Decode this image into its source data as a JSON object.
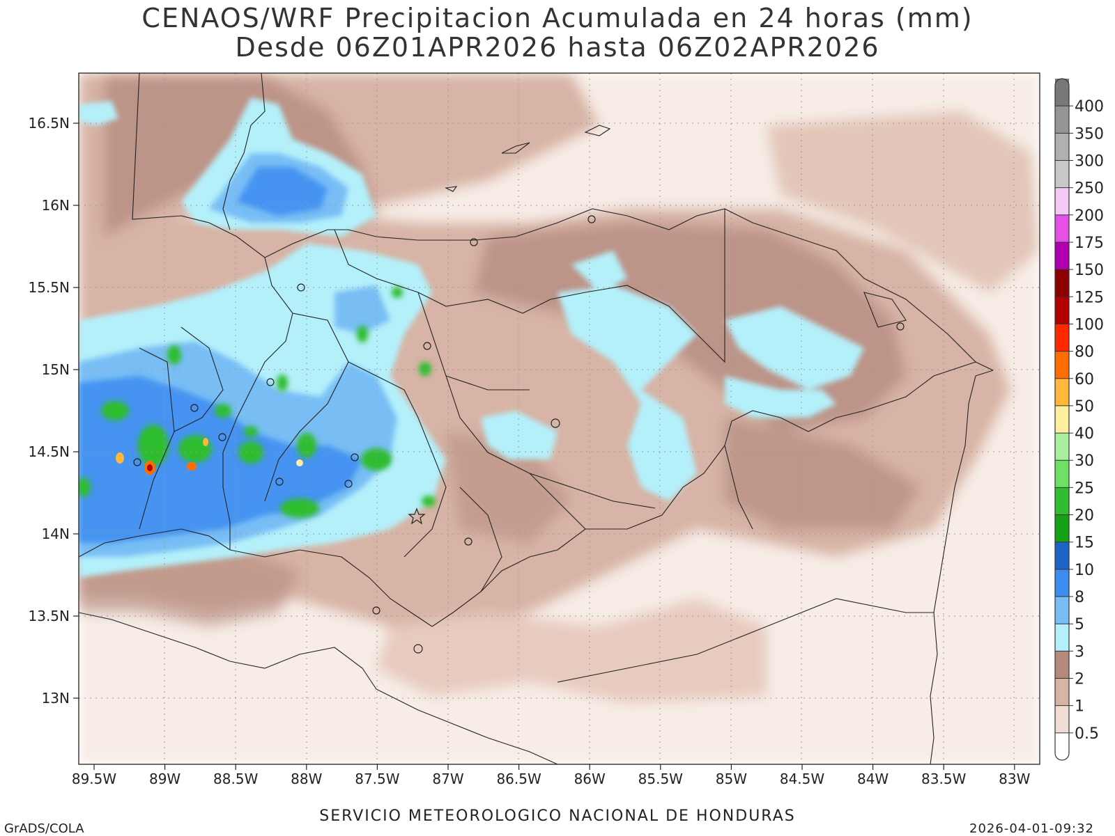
{
  "title_line1": "CENAOS/WRF Precipitacion Acumulada en 24 horas (mm)",
  "title_line2": "Desde 06Z01APR2026 hasta 06Z02APR2026",
  "footer": {
    "left": "GrADS/COLA",
    "center": "SERVICIO METEOROLOGICO NACIONAL DE HONDURAS",
    "right": "2026-04-01-09:32"
  },
  "lon_labels": [
    "89.5W",
    "89W",
    "88.5W",
    "88W",
    "87.5W",
    "87W",
    "86.5W",
    "86W",
    "85.5W",
    "85W",
    "84.5W",
    "84W",
    "83.5W",
    "83W"
  ],
  "lat_labels": [
    "16.5N",
    "16N",
    "15.5N",
    "15N",
    "14.5N",
    "14N",
    "13.5N",
    "13N"
  ],
  "colorbar": {
    "labels": [
      "400",
      "350",
      "300",
      "250",
      "200",
      "175",
      "150",
      "125",
      "100",
      "80",
      "60",
      "50",
      "40",
      "30",
      "25",
      "20",
      "15",
      "10",
      "8",
      "5",
      "3",
      "2",
      "1",
      "0.5"
    ],
    "colors": [
      "#787878",
      "#959595",
      "#b0b0b0",
      "#c8c8c8",
      "#f6c8f6",
      "#e650e6",
      "#b000b0",
      "#8c0000",
      "#b40000",
      "#ff2800",
      "#ff6e00",
      "#ffb83c",
      "#fff0a0",
      "#a8f0a0",
      "#6ee066",
      "#2fbd2f",
      "#15a015",
      "#1e64c8",
      "#3c8cf0",
      "#78bef5",
      "#b4f0fa",
      "#b48a7d",
      "#d7b4a5",
      "#f0dcd2",
      "#ffffff"
    ]
  },
  "markers": {
    "star": "capital-star",
    "circle": "city-circle"
  }
}
